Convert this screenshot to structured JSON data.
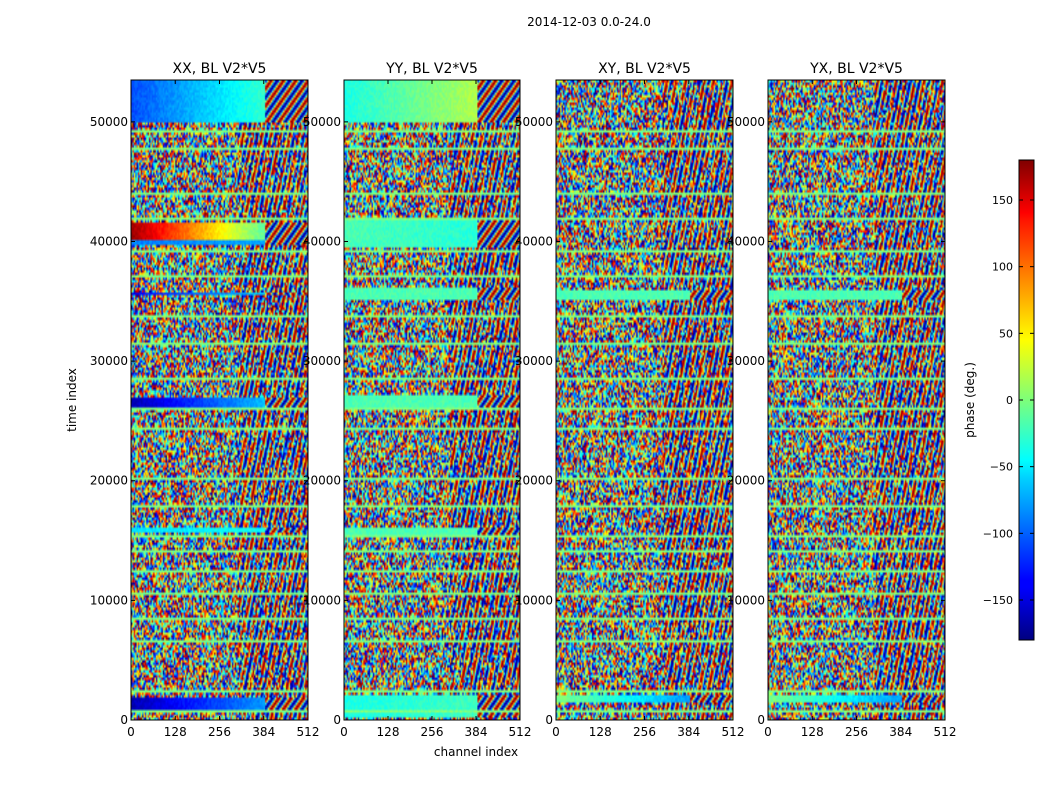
{
  "chart_data": {
    "type": "heatmap",
    "suptitle": "2014-12-03 0.0-24.0",
    "xlabel": "channel index",
    "ylabel": "time index",
    "xlim": [
      0,
      512
    ],
    "ylim": [
      0,
      53500
    ],
    "x_ticks": [
      0,
      128,
      256,
      384,
      512
    ],
    "y_ticks": [
      0,
      10000,
      20000,
      30000,
      40000,
      50000
    ],
    "panels": [
      {
        "id": "xx",
        "title": "XX, BL V2*V5",
        "bands": [
          [
            1000,
            2000,
            0.05,
            0.35
          ],
          [
            15700,
            16100,
            0.35,
            0.4
          ],
          [
            26200,
            27100,
            0.05,
            0.4
          ],
          [
            35600,
            35900,
            0.12,
            0.4
          ],
          [
            39800,
            40300,
            0.25,
            0.3
          ],
          [
            40300,
            41700,
            0.97,
            0.3
          ],
          [
            50000,
            53500,
            0.2,
            0.5
          ]
        ]
      },
      {
        "id": "yy",
        "title": "YY, BL V2*V5",
        "bands": [
          [
            300,
            2200,
            0.4,
            0.45
          ],
          [
            15500,
            16100,
            0.45,
            0.45
          ],
          [
            26100,
            27300,
            0.45,
            0.45
          ],
          [
            35200,
            36200,
            0.45,
            0.45
          ],
          [
            39700,
            41800,
            0.45,
            0.4
          ],
          [
            50000,
            53500,
            0.4,
            0.6
          ]
        ]
      },
      {
        "id": "xy",
        "title": "XY, BL V2*V5",
        "bands": [
          [
            35200,
            36000,
            0.45,
            0.45
          ],
          [
            1500,
            2200,
            0.5,
            0.2
          ]
        ]
      },
      {
        "id": "yx",
        "title": "YX, BL V2*V5",
        "bands": [
          [
            35200,
            36000,
            0.45,
            0.45
          ],
          [
            1500,
            2200,
            0.5,
            0.2
          ]
        ]
      }
    ],
    "gaps": [
      700,
      2300,
      6600,
      8400,
      10600,
      12500,
      14200,
      15300,
      17800,
      20200,
      24300,
      26000,
      28600,
      31500,
      33700,
      37000,
      39200,
      42000,
      44000,
      47800,
      49300
    ],
    "colorbar": {
      "label": "phase (deg.)",
      "range": [
        -180,
        180
      ],
      "ticks": [
        -150,
        -100,
        -50,
        0,
        50,
        100,
        150
      ],
      "tick_labels": [
        "−150",
        "−100",
        "−50",
        "0",
        "50",
        "100",
        "150"
      ]
    }
  }
}
